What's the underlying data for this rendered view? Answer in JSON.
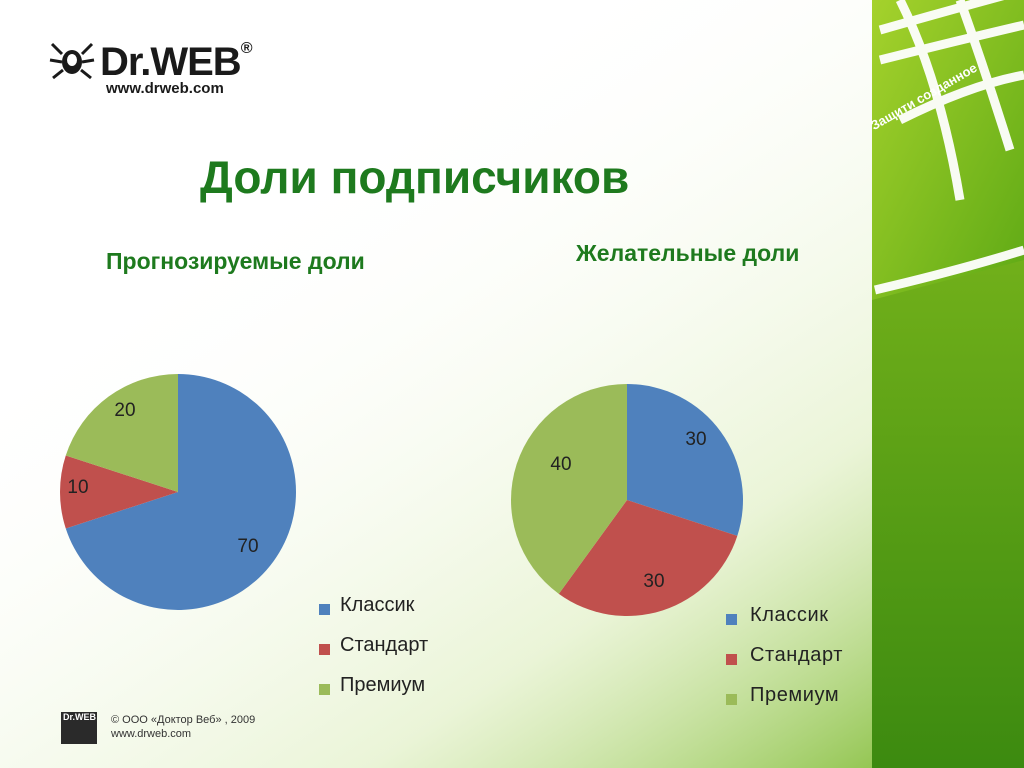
{
  "brand": {
    "logo_text": "Dr.WEB",
    "logo_mark": "®",
    "url": "www.drweb.com",
    "tagline": "Защити созданное"
  },
  "page_title": "Доли подписчиков",
  "colors": {
    "classic": "#4f81bd",
    "standard": "#c0504d",
    "premium": "#9bbb59",
    "title_green": "#1e7a1e",
    "bg_green": "#6fb21b"
  },
  "footer": {
    "logo_text": "Dr.WEB",
    "copyright": "© ООО «Доктор Веб» , 2009",
    "url": "www.drweb.com"
  },
  "chart_data": [
    {
      "type": "pie",
      "title": "Прогнозируемые доли",
      "categories": [
        "Классик",
        "Стандарт",
        "Премиум"
      ],
      "values": [
        70,
        10,
        20
      ],
      "legend": "right"
    },
    {
      "type": "pie",
      "title": "Желательные доли",
      "categories": [
        "Классик",
        "Стандарт",
        "Премиум"
      ],
      "values": [
        30,
        30,
        40
      ],
      "legend": "right"
    }
  ]
}
